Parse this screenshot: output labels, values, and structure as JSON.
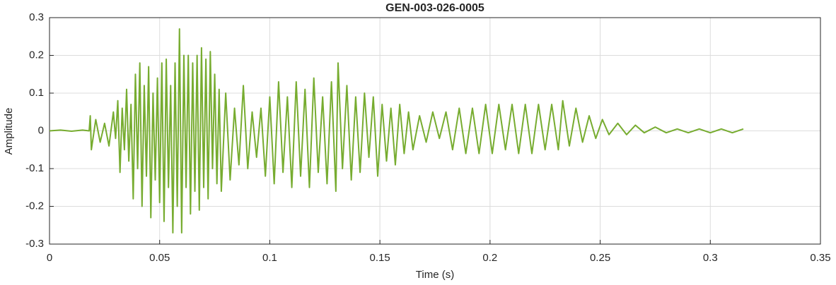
{
  "chart_data": {
    "type": "line",
    "title": "GEN-003-026-0005",
    "xlabel": "Time (s)",
    "ylabel": "Amplitude",
    "xlim": [
      0,
      0.35
    ],
    "xticks": [
      0,
      0.05,
      0.1,
      0.15,
      0.2,
      0.25,
      0.3,
      0.35
    ],
    "ylim": [
      -0.3,
      0.3
    ],
    "yticks": [
      0.3,
      0.2,
      0.1,
      0,
      -0.1,
      -0.2,
      -0.3
    ],
    "grid": true,
    "series": [
      {
        "color": "#77ac30",
        "x": [
          0,
          0.005,
          0.01,
          0.015,
          0.018,
          0.0185,
          0.019,
          0.021,
          0.023,
          0.025,
          0.027,
          0.029,
          0.03,
          0.031,
          0.032,
          0.033,
          0.034,
          0.035,
          0.036,
          0.037,
          0.038,
          0.039,
          0.04,
          0.041,
          0.042,
          0.043,
          0.044,
          0.045,
          0.046,
          0.047,
          0.048,
          0.049,
          0.05,
          0.051,
          0.052,
          0.053,
          0.054,
          0.055,
          0.056,
          0.057,
          0.058,
          0.059,
          0.06,
          0.061,
          0.062,
          0.063,
          0.064,
          0.065,
          0.066,
          0.067,
          0.068,
          0.069,
          0.07,
          0.071,
          0.072,
          0.073,
          0.074,
          0.075,
          0.076,
          0.077,
          0.078,
          0.08,
          0.082,
          0.084,
          0.086,
          0.088,
          0.09,
          0.092,
          0.094,
          0.096,
          0.098,
          0.1,
          0.102,
          0.104,
          0.106,
          0.108,
          0.11,
          0.112,
          0.114,
          0.116,
          0.118,
          0.12,
          0.122,
          0.124,
          0.126,
          0.128,
          0.13,
          0.131,
          0.133,
          0.135,
          0.137,
          0.139,
          0.141,
          0.143,
          0.145,
          0.147,
          0.149,
          0.151,
          0.153,
          0.155,
          0.157,
          0.159,
          0.161,
          0.163,
          0.165,
          0.168,
          0.171,
          0.174,
          0.177,
          0.18,
          0.183,
          0.186,
          0.189,
          0.192,
          0.195,
          0.198,
          0.201,
          0.204,
          0.207,
          0.21,
          0.213,
          0.216,
          0.219,
          0.222,
          0.225,
          0.228,
          0.231,
          0.233,
          0.236,
          0.239,
          0.242,
          0.245,
          0.248,
          0.251,
          0.254,
          0.258,
          0.262,
          0.266,
          0.27,
          0.275,
          0.28,
          0.285,
          0.29,
          0.295,
          0.3,
          0.305,
          0.31,
          0.315
        ],
        "values": [
          0,
          0.002,
          -0.001,
          0.002,
          0,
          0.04,
          -0.05,
          0.03,
          -0.03,
          0.02,
          -0.04,
          0.05,
          -0.02,
          0.08,
          -0.11,
          0.06,
          -0.05,
          0.11,
          -0.08,
          0.07,
          -0.18,
          0.15,
          -0.1,
          0.18,
          -0.2,
          0.12,
          -0.12,
          0.17,
          -0.23,
          0.1,
          -0.13,
          0.14,
          -0.19,
          0.18,
          -0.24,
          0.19,
          -0.15,
          0.12,
          -0.27,
          0.18,
          -0.2,
          0.27,
          -0.27,
          0.2,
          -0.15,
          0.2,
          -0.22,
          0.18,
          -0.16,
          0.2,
          -0.21,
          0.22,
          -0.15,
          0.19,
          -0.18,
          0.21,
          -0.1,
          0.15,
          -0.14,
          0.11,
          -0.16,
          0.1,
          -0.13,
          0.06,
          -0.09,
          0.12,
          -0.1,
          0.05,
          -0.07,
          0.06,
          -0.12,
          0.09,
          -0.14,
          0.13,
          -0.11,
          0.09,
          -0.15,
          0.13,
          -0.12,
          0.11,
          -0.15,
          0.14,
          -0.11,
          0.09,
          -0.14,
          0.13,
          -0.16,
          0.18,
          -0.1,
          0.12,
          -0.13,
          0.09,
          -0.11,
          0.1,
          -0.07,
          0.09,
          -0.12,
          0.07,
          -0.08,
          0.06,
          -0.09,
          0.07,
          -0.06,
          0.05,
          -0.05,
          0.04,
          -0.03,
          0.05,
          -0.02,
          0.05,
          -0.05,
          0.06,
          -0.06,
          0.06,
          -0.06,
          0.07,
          -0.06,
          0.07,
          -0.05,
          0.07,
          -0.06,
          0.07,
          -0.06,
          0.07,
          -0.05,
          0.07,
          -0.05,
          0.08,
          -0.04,
          0.06,
          -0.03,
          0.04,
          -0.02,
          0.03,
          -0.01,
          0.02,
          -0.01,
          0.015,
          -0.005,
          0.01,
          -0.005,
          0.005,
          -0.005,
          0.005,
          -0.005,
          0.005,
          -0.005,
          0.005
        ]
      }
    ]
  }
}
